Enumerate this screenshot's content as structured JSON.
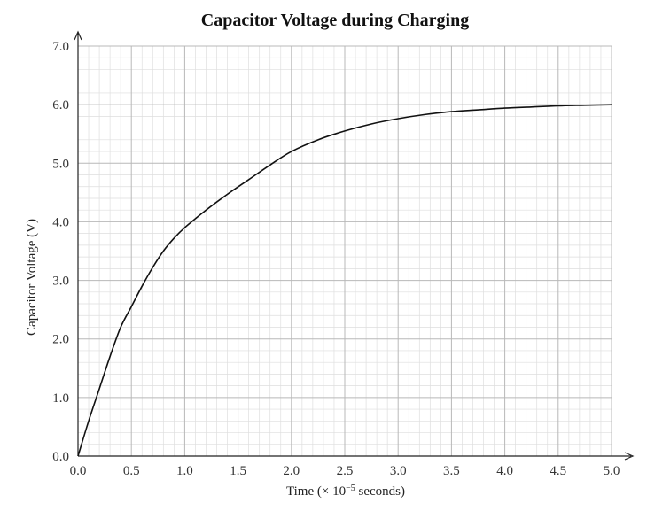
{
  "chart_data": {
    "type": "line",
    "title": "Capacitor Voltage during Charging",
    "xlabel_prefix": "Time (× 10",
    "xlabel_exp": "−5",
    "xlabel_suffix": " seconds)",
    "ylabel": "Capacitor Voltage (V)",
    "xlim": [
      0,
      5.0
    ],
    "ylim": [
      0,
      7.0
    ],
    "x_ticks": [
      "0.0",
      "0.5",
      "1.0",
      "1.5",
      "2.0",
      "2.5",
      "3.0",
      "3.5",
      "4.0",
      "4.5",
      "5.0"
    ],
    "y_ticks": [
      "0.0",
      "1.0",
      "2.0",
      "3.0",
      "4.0",
      "5.0",
      "6.0",
      "7.0"
    ],
    "grid": true,
    "legend": "none",
    "series": [
      {
        "color": "#111111",
        "x": [
          0.0,
          0.1,
          0.2,
          0.3,
          0.4,
          0.5,
          0.6,
          0.7,
          0.8,
          0.9,
          1.0,
          1.2,
          1.4,
          1.6,
          1.8,
          2.0,
          2.25,
          2.5,
          2.75,
          3.0,
          3.25,
          3.5,
          3.75,
          4.0,
          4.25,
          4.5,
          4.75,
          5.0
        ],
        "y": [
          0.0,
          0.6,
          1.15,
          1.7,
          2.2,
          2.55,
          2.9,
          3.22,
          3.5,
          3.72,
          3.9,
          4.2,
          4.47,
          4.72,
          4.97,
          5.2,
          5.4,
          5.55,
          5.67,
          5.76,
          5.83,
          5.88,
          5.91,
          5.94,
          5.96,
          5.98,
          5.99,
          6.0
        ]
      }
    ]
  }
}
